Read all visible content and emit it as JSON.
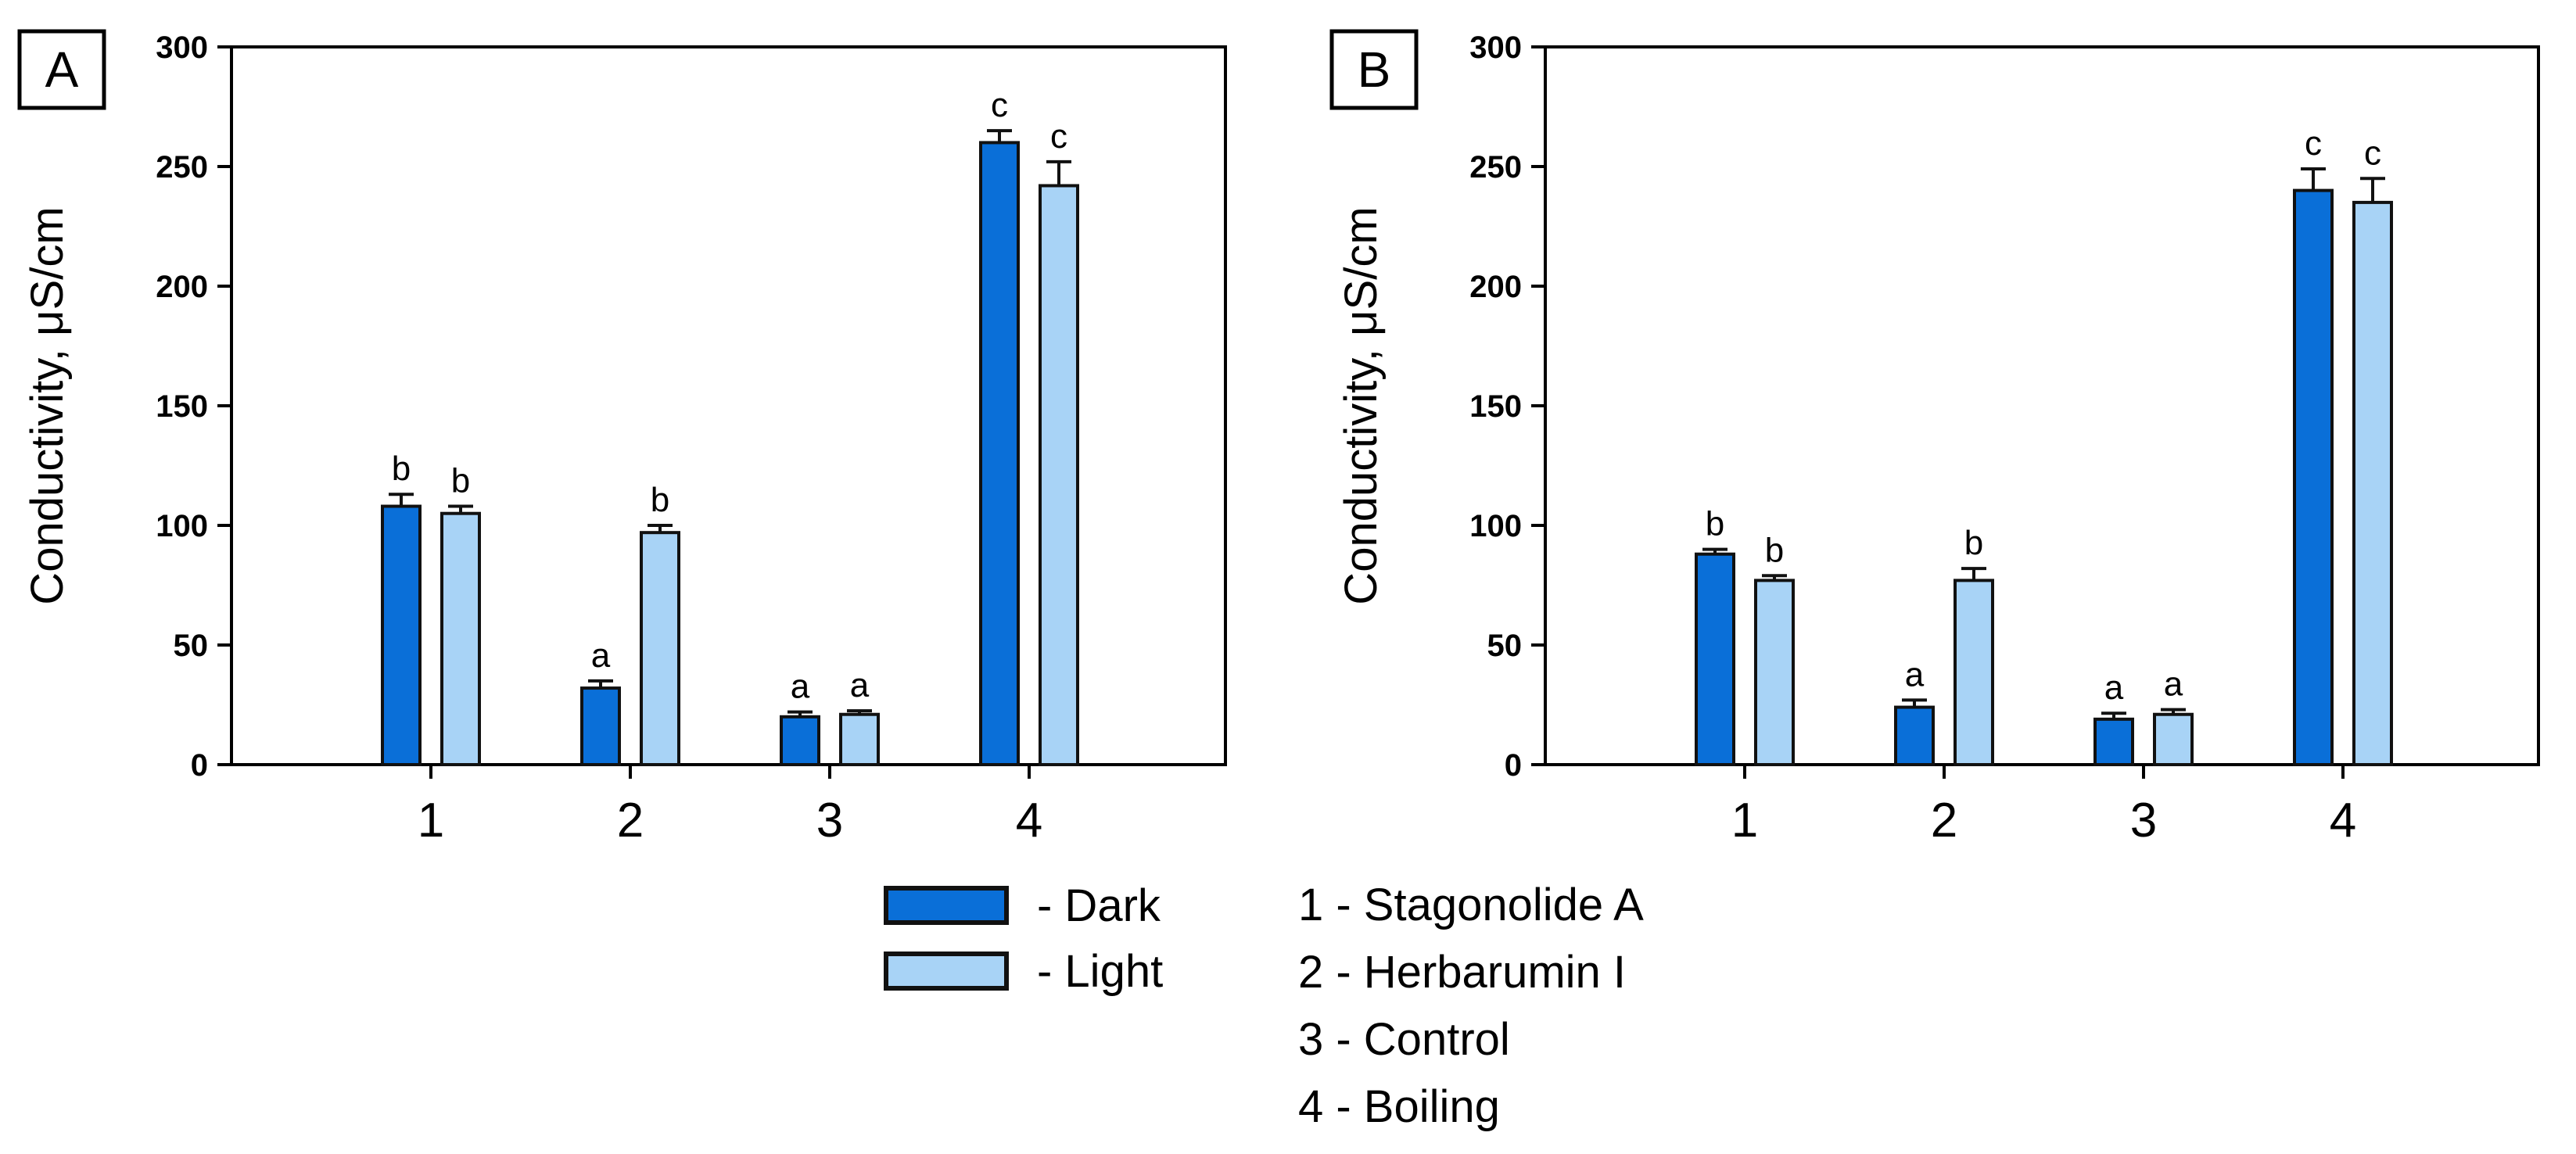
{
  "chart_data": [
    {
      "type": "bar",
      "panel_label": "A",
      "categories": [
        "1",
        "2",
        "3",
        "4"
      ],
      "ylabel": "Conductivity, μS/cm",
      "ylim": [
        0,
        300
      ],
      "yticks": [
        0,
        50,
        100,
        150,
        200,
        250,
        300
      ],
      "series": [
        {
          "name": "Dark",
          "color": "#0a6fd8",
          "values": [
            108,
            32,
            20,
            260
          ],
          "errors": [
            5,
            3,
            2,
            5
          ],
          "labels": [
            "b",
            "a",
            "a",
            "c"
          ]
        },
        {
          "name": "Light",
          "color": "#a8d3f6",
          "values": [
            105,
            97,
            21,
            242
          ],
          "errors": [
            3,
            3,
            1.5,
            10
          ],
          "labels": [
            "b",
            "b",
            "a",
            "c"
          ]
        }
      ]
    },
    {
      "type": "bar",
      "panel_label": "B",
      "categories": [
        "1",
        "2",
        "3",
        "4"
      ],
      "ylabel": "Conductivity, μS/cm",
      "ylim": [
        0,
        300
      ],
      "yticks": [
        0,
        50,
        100,
        150,
        200,
        250,
        300
      ],
      "series": [
        {
          "name": "Dark",
          "color": "#0a6fd8",
          "values": [
            88,
            24,
            19,
            240
          ],
          "errors": [
            2,
            3,
            2.5,
            9
          ],
          "labels": [
            "b",
            "a",
            "a",
            "c"
          ]
        },
        {
          "name": "Light",
          "color": "#a8d3f6",
          "values": [
            77,
            77,
            21,
            235
          ],
          "errors": [
            2,
            5,
            2,
            10
          ],
          "labels": [
            "b",
            "b",
            "a",
            "c"
          ]
        }
      ]
    }
  ],
  "legend": {
    "dark_label": "- Dark",
    "light_label": "- Light",
    "dark_color": "#0a6fd8",
    "light_color": "#a8d3f6"
  },
  "key": [
    "1 - Stagonolide A",
    "2 - Herbarumin I",
    "3 - Control",
    "4 - Boiling"
  ]
}
